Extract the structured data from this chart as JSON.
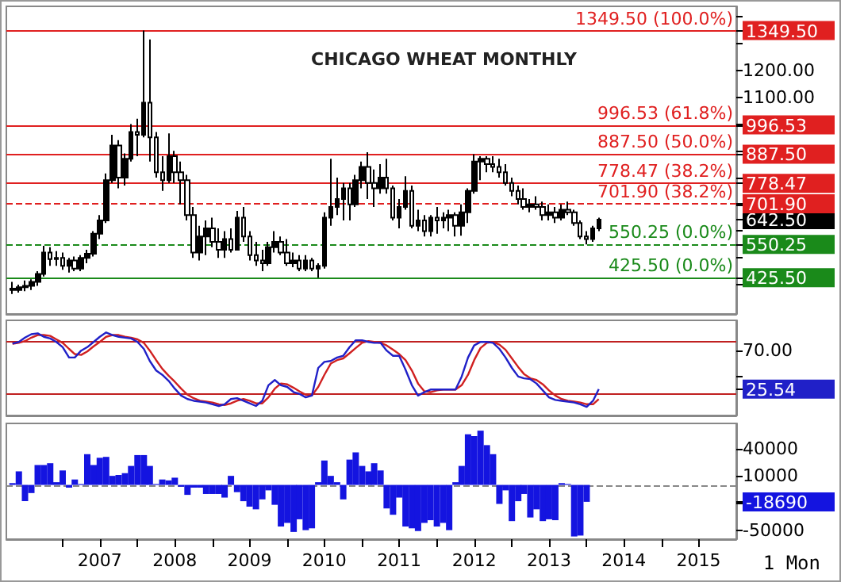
{
  "chart_data": [
    {
      "type": "candlestick",
      "title": "CHICAGO WHEAT MONTHLY",
      "color": "#000000",
      "x": [
        "2006-05",
        "2006-06",
        "2006-07",
        "2006-08",
        "2006-09",
        "2006-10",
        "2006-11",
        "2006-12",
        "2007-01",
        "2007-02",
        "2007-03",
        "2007-04",
        "2007-05",
        "2007-06",
        "2007-07",
        "2007-08",
        "2007-09",
        "2007-10",
        "2007-11",
        "2007-12",
        "2008-01",
        "2008-02",
        "2008-03",
        "2008-04",
        "2008-05",
        "2008-06",
        "2008-07",
        "2008-08",
        "2008-09",
        "2008-10",
        "2008-11",
        "2008-12",
        "2009-01",
        "2009-02",
        "2009-03",
        "2009-04",
        "2009-05",
        "2009-06",
        "2009-07",
        "2009-08",
        "2009-09",
        "2009-10",
        "2009-11",
        "2009-12",
        "2010-01",
        "2010-02",
        "2010-03",
        "2010-04",
        "2010-05",
        "2010-06",
        "2010-07",
        "2010-08",
        "2010-09",
        "2010-10",
        "2010-11",
        "2010-12",
        "2011-01",
        "2011-02",
        "2011-03",
        "2011-04",
        "2011-05",
        "2011-06",
        "2011-07",
        "2011-08",
        "2011-09",
        "2011-10",
        "2011-11",
        "2011-12",
        "2012-01",
        "2012-02",
        "2012-03",
        "2012-04",
        "2012-05",
        "2012-06",
        "2012-07",
        "2012-08",
        "2012-09",
        "2012-10",
        "2012-11",
        "2012-12",
        "2013-01",
        "2013-02",
        "2013-03",
        "2013-04",
        "2013-05",
        "2013-06",
        "2013-07",
        "2013-08",
        "2013-09",
        "2013-10",
        "2013-11",
        "2013-12",
        "2014-01",
        "2014-02",
        "2014-03"
      ],
      "ohlc": [
        [
          385,
          410,
          365,
          380
        ],
        [
          380,
          400,
          370,
          390
        ],
        [
          390,
          415,
          375,
          395
        ],
        [
          395,
          420,
          380,
          410
        ],
        [
          410,
          450,
          395,
          440
        ],
        [
          440,
          545,
          430,
          520
        ],
        [
          520,
          540,
          470,
          495
        ],
        [
          495,
          525,
          470,
          500
        ],
        [
          500,
          520,
          455,
          470
        ],
        [
          470,
          500,
          445,
          490
        ],
        [
          490,
          505,
          450,
          460
        ],
        [
          460,
          510,
          450,
          500
        ],
        [
          500,
          530,
          480,
          515
        ],
        [
          515,
          600,
          505,
          590
        ],
        [
          590,
          660,
          570,
          640
        ],
        [
          640,
          815,
          630,
          790
        ],
        [
          790,
          960,
          780,
          920
        ],
        [
          920,
          940,
          760,
          800
        ],
        [
          800,
          890,
          770,
          870
        ],
        [
          870,
          1000,
          860,
          970
        ],
        [
          970,
          1020,
          880,
          960
        ],
        [
          960,
          1349.5,
          950,
          1080
        ],
        [
          1080,
          1316,
          860,
          950
        ],
        [
          950,
          970,
          800,
          820
        ],
        [
          820,
          880,
          750,
          790
        ],
        [
          790,
          965,
          780,
          880
        ],
        [
          880,
          900,
          780,
          820
        ],
        [
          820,
          860,
          700,
          790
        ],
        [
          790,
          810,
          640,
          660
        ],
        [
          660,
          690,
          500,
          520
        ],
        [
          520,
          620,
          490,
          580
        ],
        [
          580,
          640,
          510,
          610
        ],
        [
          610,
          650,
          540,
          560
        ],
        [
          560,
          610,
          500,
          530
        ],
        [
          530,
          600,
          500,
          570
        ],
        [
          570,
          610,
          520,
          530
        ],
        [
          530,
          675,
          530,
          650
        ],
        [
          650,
          690,
          560,
          580
        ],
        [
          580,
          600,
          490,
          510
        ],
        [
          510,
          560,
          470,
          490
        ],
        [
          490,
          530,
          450,
          480
        ],
        [
          480,
          560,
          470,
          540
        ],
        [
          540,
          600,
          520,
          560
        ],
        [
          560,
          580,
          510,
          520
        ],
        [
          520,
          570,
          470,
          480
        ],
        [
          480,
          520,
          465,
          490
        ],
        [
          490,
          510,
          450,
          460
        ],
        [
          460,
          510,
          450,
          490
        ],
        [
          490,
          500,
          450,
          460
        ],
        [
          460,
          480,
          425.5,
          470
        ],
        [
          470,
          670,
          460,
          650
        ],
        [
          650,
          870,
          620,
          690
        ],
        [
          690,
          800,
          660,
          720
        ],
        [
          720,
          780,
          640,
          760
        ],
        [
          760,
          780,
          640,
          700
        ],
        [
          700,
          810,
          690,
          790
        ],
        [
          790,
          860,
          760,
          840
        ],
        [
          840,
          895,
          720,
          780
        ],
        [
          780,
          830,
          690,
          760
        ],
        [
          760,
          850,
          740,
          800
        ],
        [
          800,
          870,
          740,
          760
        ],
        [
          760,
          770,
          640,
          650
        ],
        [
          650,
          720,
          610,
          690
        ],
        [
          690,
          805,
          680,
          750
        ],
        [
          750,
          770,
          610,
          620
        ],
        [
          620,
          680,
          600,
          640
        ],
        [
          640,
          660,
          580,
          600
        ],
        [
          600,
          660,
          580,
          650
        ],
        [
          650,
          690,
          590,
          640
        ],
        [
          640,
          670,
          610,
          650
        ],
        [
          650,
          680,
          600,
          660
        ],
        [
          660,
          670,
          580,
          620
        ],
        [
          620,
          700,
          583,
          670
        ],
        [
          670,
          760,
          630,
          750
        ],
        [
          750,
          887.5,
          740,
          860
        ],
        [
          860,
          880,
          790,
          870
        ],
        [
          870,
          880,
          820,
          850
        ],
        [
          850,
          880,
          820,
          840
        ],
        [
          840,
          870,
          800,
          820
        ],
        [
          820,
          850,
          770,
          780
        ],
        [
          780,
          800,
          730,
          750
        ],
        [
          750,
          770,
          700,
          720
        ],
        [
          720,
          760,
          680,
          690
        ],
        [
          690,
          720,
          670,
          700
        ],
        [
          700,
          730,
          680,
          690
        ],
        [
          690,
          710,
          640,
          660
        ],
        [
          660,
          700,
          640,
          670
        ],
        [
          670,
          690,
          630,
          650
        ],
        [
          650,
          700,
          640,
          680
        ],
        [
          680,
          710,
          660,
          670
        ],
        [
          670,
          680,
          620,
          630
        ],
        [
          630,
          640,
          570,
          580
        ],
        [
          580,
          600,
          550.25,
          570
        ],
        [
          570,
          620,
          560,
          610
        ],
        [
          610,
          650,
          600,
          642.5
        ]
      ],
      "xlim": [
        "2006-04",
        "2016-01"
      ],
      "ylim": [
        290,
        1440
      ],
      "yticks": [
        {
          "value": 400,
          "label": null
        },
        {
          "value": 425.5,
          "label": "425.50"
        },
        {
          "value": 500,
          "label": null
        },
        {
          "value": 550.25,
          "label": "550.25"
        },
        {
          "value": 600,
          "label": null
        },
        {
          "value": 642.5,
          "label": "642.50"
        },
        {
          "value": 700,
          "label": null
        },
        {
          "value": 701.9,
          "label": "701.90"
        },
        {
          "value": 778.47,
          "label": "778.47"
        },
        {
          "value": 800,
          "label": null
        },
        {
          "value": 887.5,
          "label": "887.50"
        },
        {
          "value": 900,
          "label": null
        },
        {
          "value": 996.53,
          "label": "996.53"
        },
        {
          "value": 1000,
          "label": null
        },
        {
          "value": 1100,
          "label": "1100.00"
        },
        {
          "value": 1200,
          "label": "1200.00"
        },
        {
          "value": 1300,
          "label": null
        },
        {
          "value": 1349.5,
          "label": "1349.50"
        },
        {
          "value": 1400,
          "label": null
        }
      ],
      "ref_lines": [
        {
          "axis": "y",
          "value": 1349.5,
          "label": "1349.50 (100.0%)",
          "color": "#e02020",
          "line_style": "solid"
        },
        {
          "axis": "y",
          "value": 996.53,
          "label": "996.53 (61.8%)",
          "color": "#e02020",
          "line_style": "solid"
        },
        {
          "axis": "y",
          "value": 887.5,
          "label": "887.50 (50.0%)",
          "color": "#e02020",
          "line_style": "solid"
        },
        {
          "axis": "y",
          "value": 778.47,
          "label": "778.47 (38.2%)",
          "color": "#e02020",
          "line_style": "solid"
        },
        {
          "axis": "y",
          "value": 701.9,
          "label": "701.90 (38.2%)",
          "color": "#e02020",
          "line_style": "dashed"
        },
        {
          "axis": "y",
          "value": 550.25,
          "label": "550.25 (0.0%)",
          "color": "#1a8a1a",
          "line_style": "dashed"
        },
        {
          "axis": "y",
          "value": 425.5,
          "label": "425.50 (0.0%)",
          "color": "#1a8a1a",
          "line_style": "solid"
        }
      ],
      "tick_labels": "y"
    },
    {
      "type": "line",
      "x": [
        "2006-05",
        "2006-06",
        "2006-07",
        "2006-08",
        "2006-09",
        "2006-10",
        "2006-11",
        "2006-12",
        "2007-01",
        "2007-02",
        "2007-03",
        "2007-04",
        "2007-05",
        "2007-06",
        "2007-07",
        "2007-08",
        "2007-09",
        "2007-10",
        "2007-11",
        "2007-12",
        "2008-01",
        "2008-02",
        "2008-03",
        "2008-04",
        "2008-05",
        "2008-06",
        "2008-07",
        "2008-08",
        "2008-09",
        "2008-10",
        "2008-11",
        "2008-12",
        "2009-01",
        "2009-02",
        "2009-03",
        "2009-04",
        "2009-05",
        "2009-06",
        "2009-07",
        "2009-08",
        "2009-09",
        "2009-10",
        "2009-11",
        "2009-12",
        "2010-01",
        "2010-02",
        "2010-03",
        "2010-04",
        "2010-05",
        "2010-06",
        "2010-07",
        "2010-08",
        "2010-09",
        "2010-10",
        "2010-11",
        "2010-12",
        "2011-01",
        "2011-02",
        "2011-03",
        "2011-04",
        "2011-05",
        "2011-06",
        "2011-07",
        "2011-08",
        "2011-09",
        "2011-10",
        "2011-11",
        "2011-12",
        "2012-01",
        "2012-02",
        "2012-03",
        "2012-04",
        "2012-05",
        "2012-06",
        "2012-07",
        "2012-08",
        "2012-09",
        "2012-10",
        "2012-11",
        "2012-12",
        "2013-01",
        "2013-02",
        "2013-03",
        "2013-04",
        "2013-05",
        "2013-06",
        "2013-07",
        "2013-08",
        "2013-09",
        "2013-10",
        "2013-11",
        "2013-12",
        "2014-01",
        "2014-02",
        "2014-03"
      ],
      "series": [
        {
          "color": "#2020c8",
          "values": [
            78,
            80,
            85,
            89,
            90,
            86,
            84,
            80,
            74,
            62,
            62,
            70,
            74,
            80,
            86,
            91,
            88,
            86,
            85,
            84,
            80,
            72,
            58,
            47,
            42,
            35,
            26,
            18,
            14,
            12,
            11,
            10,
            8,
            6,
            8,
            14,
            15,
            12,
            9,
            6,
            12,
            30,
            36,
            30,
            28,
            22,
            20,
            16,
            18,
            50,
            57,
            58,
            62,
            64,
            74,
            82,
            82,
            80,
            79,
            79,
            70,
            64,
            64,
            48,
            30,
            18,
            22,
            25,
            25,
            25,
            25,
            25,
            40,
            62,
            76,
            80,
            80,
            79,
            72,
            62,
            50,
            40,
            38,
            37,
            32,
            24,
            16,
            13,
            12,
            11,
            10,
            8,
            5,
            12,
            25.54
          ]
        },
        {
          "color": "#d02020",
          "values": [
            78,
            79,
            81,
            85,
            88,
            88,
            87,
            83,
            79,
            72,
            66,
            65,
            69,
            75,
            80,
            86,
            88,
            88,
            86,
            85,
            83,
            79,
            70,
            59,
            49,
            41,
            34,
            26,
            19,
            15,
            12,
            11,
            10,
            8,
            7,
            9,
            12,
            14,
            12,
            9,
            9,
            16,
            26,
            32,
            31,
            27,
            23,
            19,
            18,
            28,
            42,
            55,
            59,
            61,
            67,
            73,
            79,
            81,
            80,
            79,
            76,
            71,
            66,
            59,
            47,
            32,
            23,
            22,
            24,
            25,
            25,
            25,
            30,
            42,
            59,
            73,
            79,
            80,
            77,
            71,
            61,
            51,
            43,
            38,
            36,
            31,
            24,
            18,
            14,
            12,
            11,
            10,
            8,
            8,
            14
          ]
        }
      ],
      "xlim": [
        "2006-04",
        "2016-01"
      ],
      "ylim": [
        -5,
        105
      ],
      "yticks": [
        {
          "value": 25.54,
          "label": "25.54"
        },
        {
          "value": 40,
          "label": null
        },
        {
          "value": 70,
          "label": "70.00"
        }
      ],
      "ref_lines": [
        {
          "axis": "y",
          "value": 80,
          "color": "#c02020",
          "line_style": "solid"
        },
        {
          "axis": "y",
          "value": 20,
          "color": "#c02020",
          "line_style": "solid"
        }
      ],
      "tick_labels": "y"
    },
    {
      "type": "bar",
      "color": "#1414e0",
      "x": [
        "2006-05",
        "2006-06",
        "2006-07",
        "2006-08",
        "2006-09",
        "2006-10",
        "2006-11",
        "2006-12",
        "2007-01",
        "2007-02",
        "2007-03",
        "2007-04",
        "2007-05",
        "2007-06",
        "2007-07",
        "2007-08",
        "2007-09",
        "2007-10",
        "2007-11",
        "2007-12",
        "2008-01",
        "2008-02",
        "2008-03",
        "2008-04",
        "2008-05",
        "2008-06",
        "2008-07",
        "2008-08",
        "2008-09",
        "2008-10",
        "2008-11",
        "2008-12",
        "2009-01",
        "2009-02",
        "2009-03",
        "2009-04",
        "2009-05",
        "2009-06",
        "2009-07",
        "2009-08",
        "2009-09",
        "2009-10",
        "2009-11",
        "2009-12",
        "2010-01",
        "2010-02",
        "2010-03",
        "2010-04",
        "2010-05",
        "2010-06",
        "2010-07",
        "2010-08",
        "2010-09",
        "2010-10",
        "2010-11",
        "2010-12",
        "2011-01",
        "2011-02",
        "2011-03",
        "2011-04",
        "2011-05",
        "2011-06",
        "2011-07",
        "2011-08",
        "2011-09",
        "2011-10",
        "2011-11",
        "2011-12",
        "2012-01",
        "2012-02",
        "2012-03",
        "2012-04",
        "2012-05",
        "2012-06",
        "2012-07",
        "2012-08",
        "2012-09",
        "2012-10",
        "2012-11",
        "2012-12",
        "2013-01",
        "2013-02",
        "2013-03",
        "2013-04",
        "2013-05",
        "2013-06",
        "2013-07",
        "2013-08",
        "2013-09",
        "2013-10",
        "2013-11",
        "2013-12",
        "2014-01"
      ],
      "values": [
        2000,
        15000,
        -18000,
        -9000,
        22000,
        22000,
        24000,
        3000,
        16000,
        -3000,
        6000,
        1000,
        34000,
        22000,
        30000,
        31000,
        10000,
        11000,
        13000,
        21000,
        33000,
        33000,
        21000,
        1000,
        6000,
        5000,
        8000,
        -2000,
        -11000,
        -3000,
        -3000,
        -10000,
        -10000,
        -10000,
        -14000,
        10000,
        -8000,
        -18000,
        -24000,
        -27000,
        -16000,
        -6000,
        -22000,
        -46000,
        -42000,
        -52000,
        -38000,
        -50000,
        -48000,
        3000,
        27000,
        10000,
        3000,
        -16000,
        28000,
        36000,
        21000,
        15000,
        24000,
        16000,
        -26000,
        -33000,
        -14000,
        -46000,
        -48000,
        -51000,
        -42000,
        -39000,
        -46000,
        -42000,
        -50000,
        3000,
        21000,
        56000,
        54000,
        60000,
        44000,
        34000,
        -21000,
        -6000,
        -40000,
        -18000,
        -10000,
        -36000,
        -27000,
        -40000,
        -38000,
        -39000,
        2000,
        1000,
        -57000,
        -56000,
        -18690
      ],
      "xlim": [
        "2006-04",
        "2016-01"
      ],
      "ylim": [
        -60000,
        68000
      ],
      "xticks": [
        {
          "value": "2007-01",
          "label": null
        },
        {
          "value": "2007-07",
          "label": "2007"
        },
        {
          "value": "2008-01",
          "label": null
        },
        {
          "value": "2008-07",
          "label": "2008"
        },
        {
          "value": "2009-01",
          "label": null
        },
        {
          "value": "2009-07",
          "label": "2009"
        },
        {
          "value": "2010-01",
          "label": null
        },
        {
          "value": "2010-07",
          "label": "2010"
        },
        {
          "value": "2011-01",
          "label": null
        },
        {
          "value": "2011-07",
          "label": "2011"
        },
        {
          "value": "2012-01",
          "label": null
        },
        {
          "value": "2012-07",
          "label": "2012"
        },
        {
          "value": "2013-01",
          "label": null
        },
        {
          "value": "2013-07",
          "label": "2013"
        },
        {
          "value": "2014-01",
          "label": null
        },
        {
          "value": "2014-07",
          "label": "2014"
        },
        {
          "value": "2015-01",
          "label": null
        },
        {
          "value": "2015-07",
          "label": "2015"
        }
      ],
      "yticks": [
        {
          "value": -50000,
          "label": "-50000"
        },
        {
          "value": -20000,
          "label": null
        },
        {
          "value": -18690,
          "label": "-18690"
        },
        {
          "value": 10000,
          "label": "10000"
        },
        {
          "value": 40000,
          "label": "40000"
        }
      ],
      "ref_lines": [
        {
          "axis": "y",
          "value": 0,
          "color": "#888888",
          "line_style": "dashed"
        }
      ],
      "annotations": [
        "1 Mon"
      ]
    }
  ]
}
